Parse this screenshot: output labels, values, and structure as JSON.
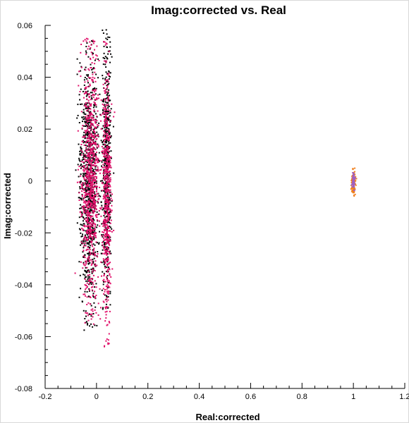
{
  "chart_data": {
    "type": "scatter",
    "title": "Imag:corrected vs. Real",
    "xlabel": "Real:corrected",
    "ylabel": "Imag:corrected",
    "xlim": [
      -0.2,
      1.2
    ],
    "ylim": [
      -0.08,
      0.06
    ],
    "xticks": [
      "-0.2",
      "0",
      "0.2",
      "0.4",
      "0.6",
      "0.8",
      "1",
      "1.2"
    ],
    "yticks": [
      "0.06",
      "0.04",
      "0.02",
      "0",
      "-0.02",
      "-0.04",
      "-0.06",
      "-0.08"
    ],
    "grid": false,
    "series": [
      {
        "color": "#000000",
        "clusters": [
          {
            "x_center": -0.03,
            "x_spread": 0.035,
            "y_min": -0.058,
            "y_max": 0.055,
            "count": 900
          },
          {
            "x_center": 0.04,
            "x_spread": 0.016,
            "y_min": -0.05,
            "y_max": 0.059,
            "count": 550
          }
        ]
      },
      {
        "color": "#e0106a",
        "clusters": [
          {
            "x_center": -0.025,
            "x_spread": 0.035,
            "y_min": -0.056,
            "y_max": 0.055,
            "count": 900
          },
          {
            "x_center": 0.04,
            "x_spread": 0.016,
            "y_min": -0.064,
            "y_max": 0.054,
            "count": 550
          }
        ]
      },
      {
        "color": "#f08020",
        "clusters": [
          {
            "x_center": 1.0,
            "x_spread": 0.008,
            "y_min": -0.006,
            "y_max": 0.005,
            "count": 120
          }
        ]
      },
      {
        "color": "#a060c0",
        "clusters": [
          {
            "x_center": 1.0,
            "x_spread": 0.005,
            "y_min": -0.004,
            "y_max": 0.004,
            "count": 60
          }
        ]
      }
    ]
  }
}
